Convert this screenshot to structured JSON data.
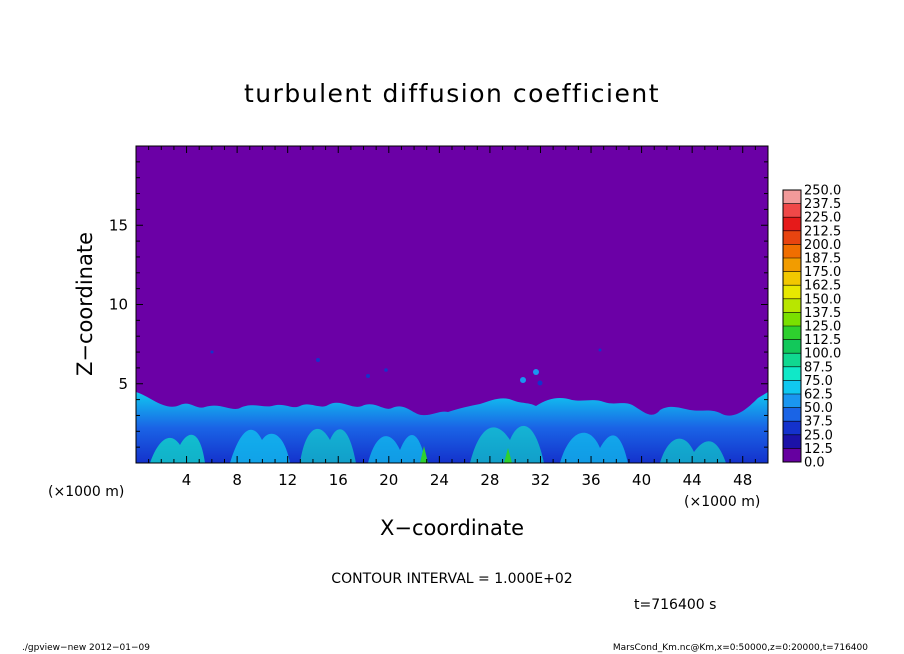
{
  "chart_data": {
    "type": "heatmap",
    "title": "turbulent diffusion coefficient",
    "xlabel": "X−coordinate",
    "ylabel": "Z−coordinate",
    "x_unit": "(×1000 m)",
    "xlim": [
      0,
      50
    ],
    "ylim": [
      0,
      20
    ],
    "x_ticks": [
      4,
      8,
      12,
      16,
      20,
      24,
      28,
      32,
      36,
      40,
      44,
      48
    ],
    "y_ticks": [
      5,
      10,
      15
    ],
    "colorbar": {
      "levels": [
        "250.0",
        "237.5",
        "225.0",
        "212.5",
        "200.0",
        "187.5",
        "175.0",
        "162.5",
        "150.0",
        "137.5",
        "125.0",
        "112.5",
        "100.0",
        "87.5",
        "75.0",
        "62.5",
        "50.0",
        "37.5",
        "25.0",
        "12.5",
        "0.0"
      ],
      "colors": [
        "#f29a9a",
        "#f04848",
        "#e61a1a",
        "#e84410",
        "#f06e00",
        "#f29c00",
        "#f2c800",
        "#e8e800",
        "#b8e600",
        "#7ae000",
        "#2ed02e",
        "#12c85a",
        "#10d890",
        "#10e8c8",
        "#10c8f0",
        "#1a96f0",
        "#1a64e6",
        "#1432cc",
        "#1c12a8",
        "#6600a0"
      ],
      "background_color": "#6b00a6"
    },
    "contour_interval": "CONTOUR INTERVAL = 1.000E+02",
    "time_label": "t=716400  s"
  },
  "footer": {
    "left": "./gpview−new   2012−01−09",
    "right": "MarsCond_Km.nc@Km,x=0:50000,z=0:20000,t=716400"
  }
}
